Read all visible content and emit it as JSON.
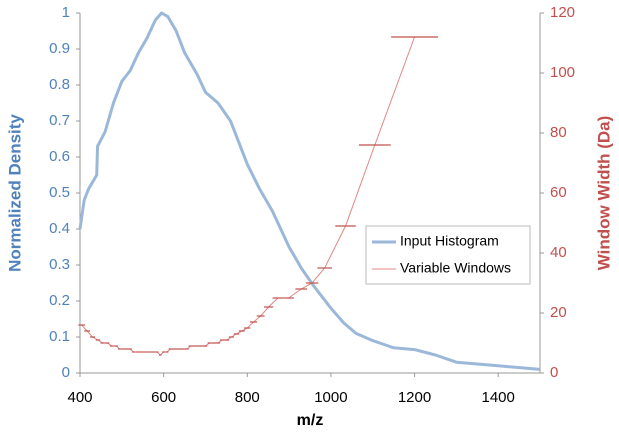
{
  "chart_data": {
    "type": "line",
    "x_label": "m/z",
    "y_label": "Normalized Density",
    "y2_label": "Window Width (Da)",
    "xlim": [
      400,
      1500
    ],
    "xticks": [
      400,
      600,
      800,
      1000,
      1200,
      1400
    ],
    "ylim": [
      0,
      1
    ],
    "yticks": [
      0,
      0.1,
      0.2,
      0.3,
      0.4,
      0.5,
      0.6,
      0.7,
      0.8,
      0.9,
      1
    ],
    "y2lim": [
      0,
      120
    ],
    "y2ticks": [
      0,
      20,
      40,
      60,
      80,
      100,
      120
    ],
    "y_color": "#4f81bd",
    "y2_color": "#c0504d",
    "series": [
      {
        "name": "Input Histogram",
        "color": "#9bb7d9",
        "x": [
          400,
          410,
          420,
          430,
          440,
          442,
          460,
          480,
          500,
          520,
          540,
          560,
          580,
          595,
          610,
          630,
          650,
          680,
          700,
          730,
          760,
          780,
          800,
          830,
          860,
          880,
          900,
          930,
          960,
          1000,
          1030,
          1060,
          1100,
          1150,
          1200,
          1250,
          1300,
          1400,
          1500
        ],
        "values": [
          0.4,
          0.48,
          0.51,
          0.53,
          0.55,
          0.63,
          0.67,
          0.75,
          0.81,
          0.84,
          0.89,
          0.93,
          0.98,
          1.0,
          0.99,
          0.95,
          0.89,
          0.83,
          0.78,
          0.75,
          0.7,
          0.64,
          0.58,
          0.51,
          0.45,
          0.4,
          0.35,
          0.29,
          0.24,
          0.18,
          0.14,
          0.11,
          0.09,
          0.07,
          0.065,
          0.05,
          0.03,
          0.02,
          0.01
        ]
      },
      {
        "name": "Variable Windows",
        "color": "#e08784",
        "axis": "y2",
        "style": "windows",
        "x": [
          404,
          417,
          430,
          443,
          454,
          465,
          476,
          486,
          495,
          504,
          512,
          520,
          528,
          536,
          544,
          552,
          560,
          568,
          576,
          584,
          592,
          600,
          608,
          616,
          624,
          632,
          640,
          648,
          656,
          664,
          673,
          682,
          691,
          700,
          710,
          720,
          730,
          740,
          751,
          762,
          774,
          787,
          800,
          815,
          832,
          851,
          873,
          899,
          929,
          955,
          985,
          1035,
          1105,
          1200
        ],
        "values": [
          16,
          14,
          12,
          11,
          10,
          10,
          9,
          9,
          8,
          8,
          8,
          8,
          7,
          7,
          7,
          7,
          7,
          7,
          7,
          7,
          6,
          7,
          7,
          8,
          8,
          8,
          8,
          8,
          8,
          9,
          9,
          9,
          9,
          9,
          10,
          10,
          10,
          11,
          11,
          12,
          13,
          14,
          15,
          17,
          19,
          22,
          25,
          25,
          28,
          30,
          35,
          49,
          76,
          112
        ]
      }
    ]
  }
}
